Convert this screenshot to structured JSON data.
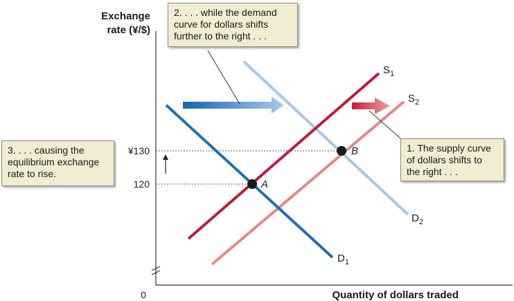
{
  "y_axis_label_line1": "Exchange",
  "y_axis_label_line2": "rate (¥/$)",
  "x_axis_label": "Quantity of dollars traded",
  "origin_label": "0",
  "tick_130": "¥130",
  "tick_120": "120",
  "curves": {
    "S1": {
      "letter": "S",
      "sub": "1"
    },
    "S2": {
      "letter": "S",
      "sub": "2"
    },
    "D1": {
      "letter": "D",
      "sub": "1"
    },
    "D2": {
      "letter": "D",
      "sub": "2"
    }
  },
  "points": {
    "A": "A",
    "B": "B"
  },
  "callouts": {
    "demand": "2.  . . . while the demand curve for dollars shifts further to the right . . .",
    "supply": "1. The supply curve of dollars shifts to the right . . .",
    "rate": "3.  . . . causing the equilibrium exchange rate to rise."
  },
  "colors": {
    "s1": "#c0193a",
    "s2": "#e08a86",
    "d1": "#1f6fb5",
    "d2": "#a8c7e6",
    "callout_bg": "#f1ecd2"
  }
}
